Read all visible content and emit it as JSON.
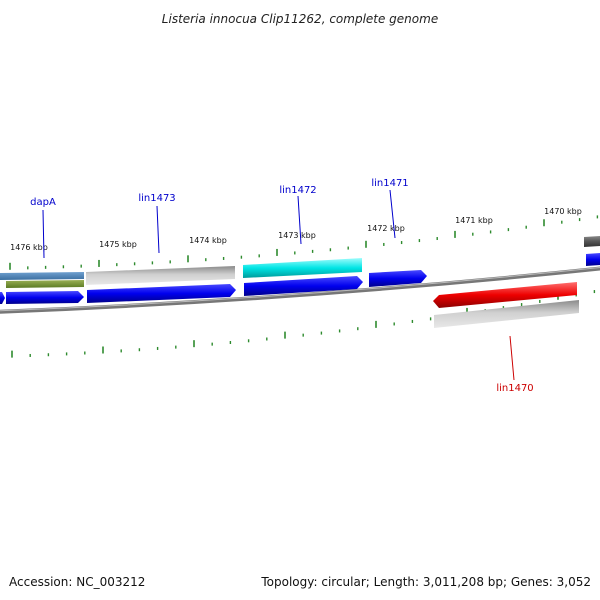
{
  "title": "Listeria innocua Clip11262, complete genome",
  "footer": {
    "accession": "Accession: NC_003212",
    "summary": "Topology: circular; Length: 3,011,208 bp; Genes: 3,052"
  },
  "colors": {
    "forward_gene": "#0000ee",
    "highlight_gene": "#00e5e5",
    "reverse_gene_red": "#ee0000",
    "grey_gene": "#b0b0b0",
    "tick": "#2e8b2e",
    "label_blue": "#0000cc",
    "label_red": "#cc0000"
  },
  "kbp_labels": [
    "1476 kbp",
    "1475 kbp",
    "1474 kbp",
    "1473 kbp",
    "1472 kbp",
    "1471 kbp",
    "1470 kbp"
  ],
  "gene_labels": [
    {
      "id": "dapA",
      "text": "dapA",
      "color": "blue"
    },
    {
      "id": "lin1473",
      "text": "lin1473",
      "color": "blue"
    },
    {
      "id": "lin1472",
      "text": "lin1472",
      "color": "blue"
    },
    {
      "id": "lin1471",
      "text": "lin1471",
      "color": "blue"
    },
    {
      "id": "lin1470",
      "text": "lin1470",
      "color": "red"
    }
  ]
}
